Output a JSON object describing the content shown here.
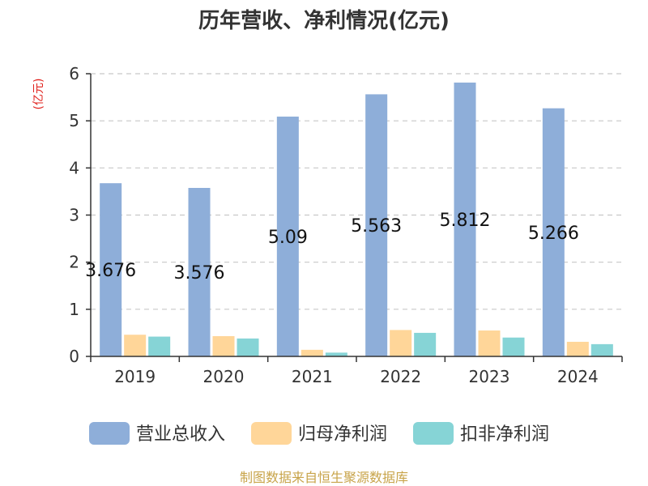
{
  "chart_data": {
    "type": "bar",
    "title": "历年营收、净利情况(亿元)",
    "unit_label": "(亿元)",
    "categories": [
      "2019",
      "2020",
      "2021",
      "2022",
      "2023",
      "2024"
    ],
    "series": [
      {
        "name": "营业总收入",
        "color": "#8eaed9",
        "values": [
          3.676,
          3.576,
          5.09,
          5.563,
          5.812,
          5.266
        ],
        "labels": [
          "3.676",
          "3.576",
          "5.09",
          "5.563",
          "5.812",
          "5.266"
        ]
      },
      {
        "name": "归母净利润",
        "color": "#ffd699",
        "values": [
          0.46,
          0.43,
          0.14,
          0.56,
          0.55,
          0.31
        ]
      },
      {
        "name": "扣非净利润",
        "color": "#86d4d6",
        "values": [
          0.42,
          0.38,
          0.08,
          0.5,
          0.4,
          0.26
        ]
      }
    ],
    "y_ticks": [
      "0",
      "1",
      "2",
      "3",
      "4",
      "5",
      "6"
    ],
    "ylim": [
      0,
      6
    ],
    "grid": true,
    "legend_position": "bottom"
  },
  "source": "制图数据来自恒生聚源数据库"
}
